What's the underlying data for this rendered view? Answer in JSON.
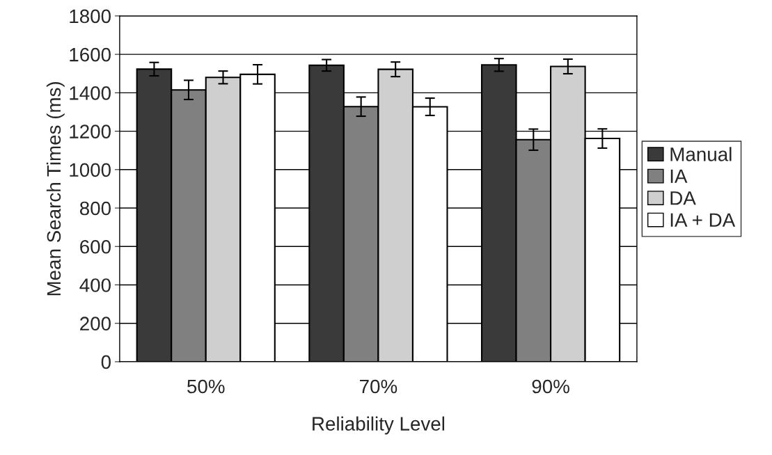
{
  "chart_data": {
    "type": "bar",
    "xlabel": "Reliability Level",
    "ylabel": "Mean Search Times (ms)",
    "categories": [
      "50%",
      "70%",
      "90%"
    ],
    "series": [
      {
        "name": "Manual",
        "color": "#3a3a3a",
        "values": [
          1523,
          1543,
          1545
        ],
        "errors": [
          35,
          30,
          33
        ]
      },
      {
        "name": "IA",
        "color": "#808080",
        "values": [
          1415,
          1328,
          1156
        ],
        "errors": [
          50,
          50,
          55
        ]
      },
      {
        "name": "DA",
        "color": "#cfcfcf",
        "values": [
          1480,
          1522,
          1537
        ],
        "errors": [
          33,
          38,
          38
        ]
      },
      {
        "name": "IA + DA",
        "color": "#ffffff",
        "values": [
          1496,
          1327,
          1162
        ],
        "errors": [
          50,
          45,
          50
        ]
      }
    ],
    "ylim": [
      0,
      1800
    ],
    "yticks": [
      0,
      200,
      400,
      600,
      800,
      1000,
      1200,
      1400,
      1600,
      1800
    ],
    "grid": "y",
    "legend": "right"
  }
}
